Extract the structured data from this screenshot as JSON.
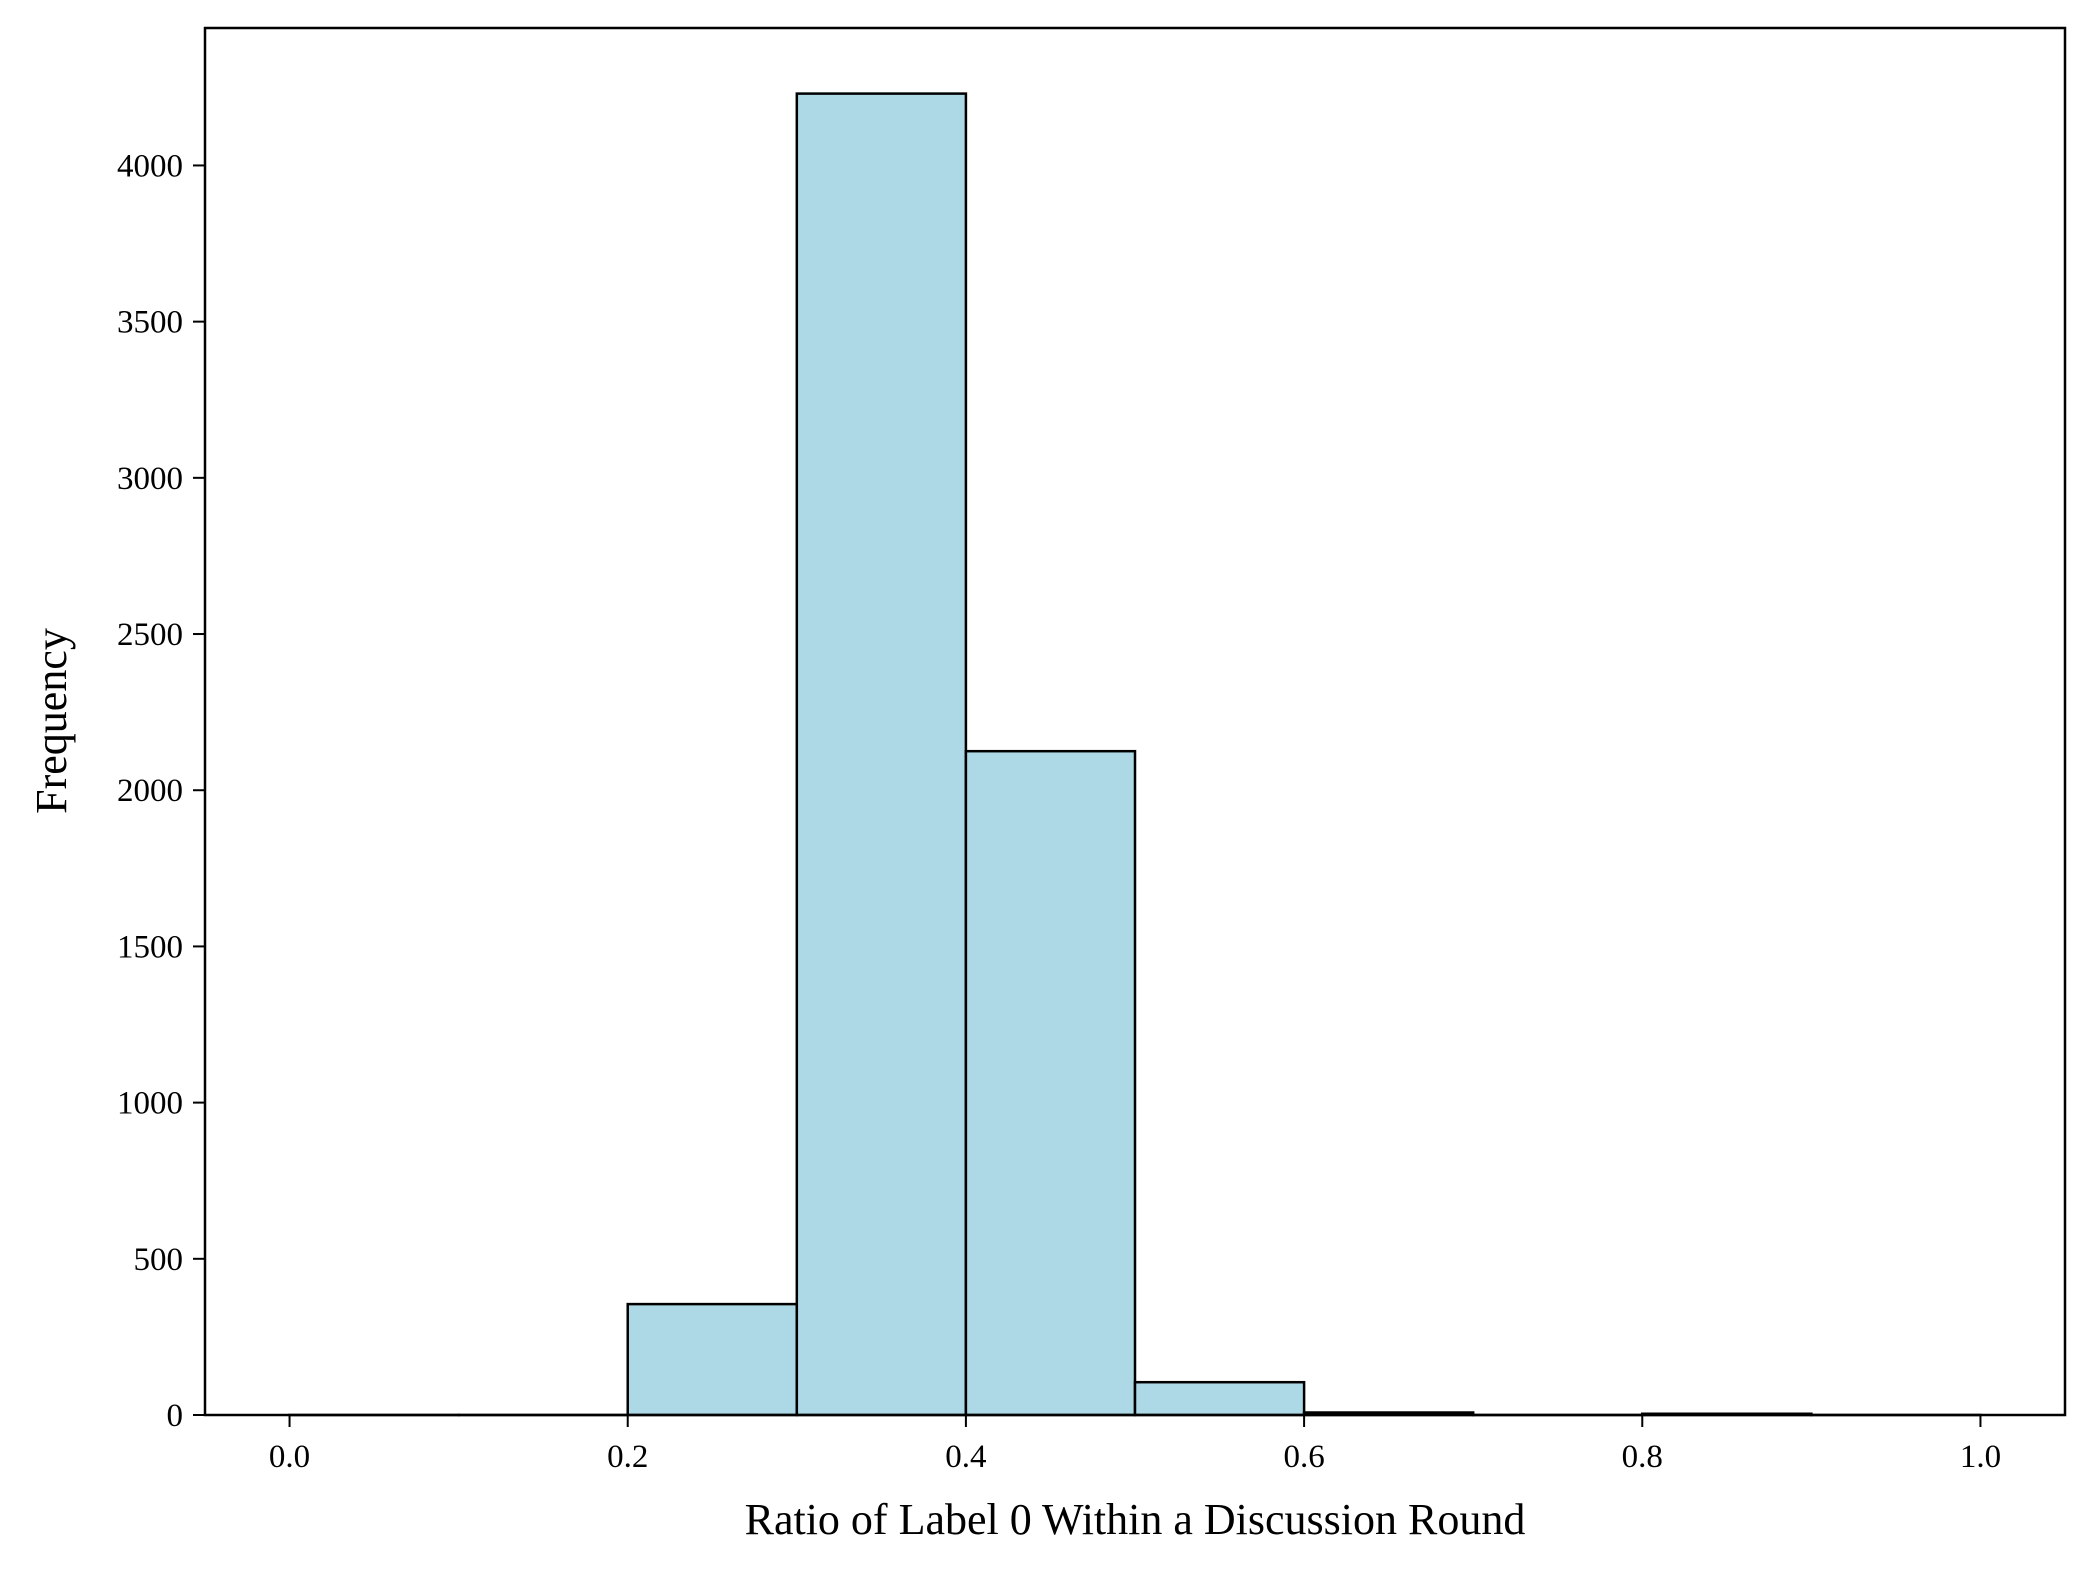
{
  "chart_data": {
    "type": "bar",
    "subtype": "histogram",
    "title": "",
    "xlabel": "Ratio of Label 0 Within a Discussion Round",
    "ylabel": "Frequency",
    "bins": [
      {
        "start": 0.0,
        "end": 0.1,
        "value": 0
      },
      {
        "start": 0.1,
        "end": 0.2,
        "value": 0
      },
      {
        "start": 0.2,
        "end": 0.3,
        "value": 355
      },
      {
        "start": 0.3,
        "end": 0.4,
        "value": 4230
      },
      {
        "start": 0.4,
        "end": 0.5,
        "value": 2125
      },
      {
        "start": 0.5,
        "end": 0.6,
        "value": 105
      },
      {
        "start": 0.6,
        "end": 0.7,
        "value": 8
      },
      {
        "start": 0.7,
        "end": 0.8,
        "value": 0
      },
      {
        "start": 0.8,
        "end": 0.9,
        "value": 4
      },
      {
        "start": 0.9,
        "end": 1.0,
        "value": 0
      }
    ],
    "xlim": [
      -0.05,
      1.05
    ],
    "ylim": [
      0,
      4440
    ],
    "xticks": [
      0.0,
      0.2,
      0.4,
      0.6,
      0.8,
      1.0
    ],
    "xtick_labels": [
      "0.0",
      "0.2",
      "0.4",
      "0.6",
      "0.8",
      "1.0"
    ],
    "yticks": [
      0,
      500,
      1000,
      1500,
      2000,
      2500,
      3000,
      3500,
      4000
    ],
    "ytick_labels": [
      "0",
      "500",
      "1000",
      "1500",
      "2000",
      "2500",
      "3000",
      "3500",
      "4000"
    ],
    "bar_color": "#add8e6",
    "edge_color": "#000000",
    "grid": false,
    "legend": "none"
  }
}
